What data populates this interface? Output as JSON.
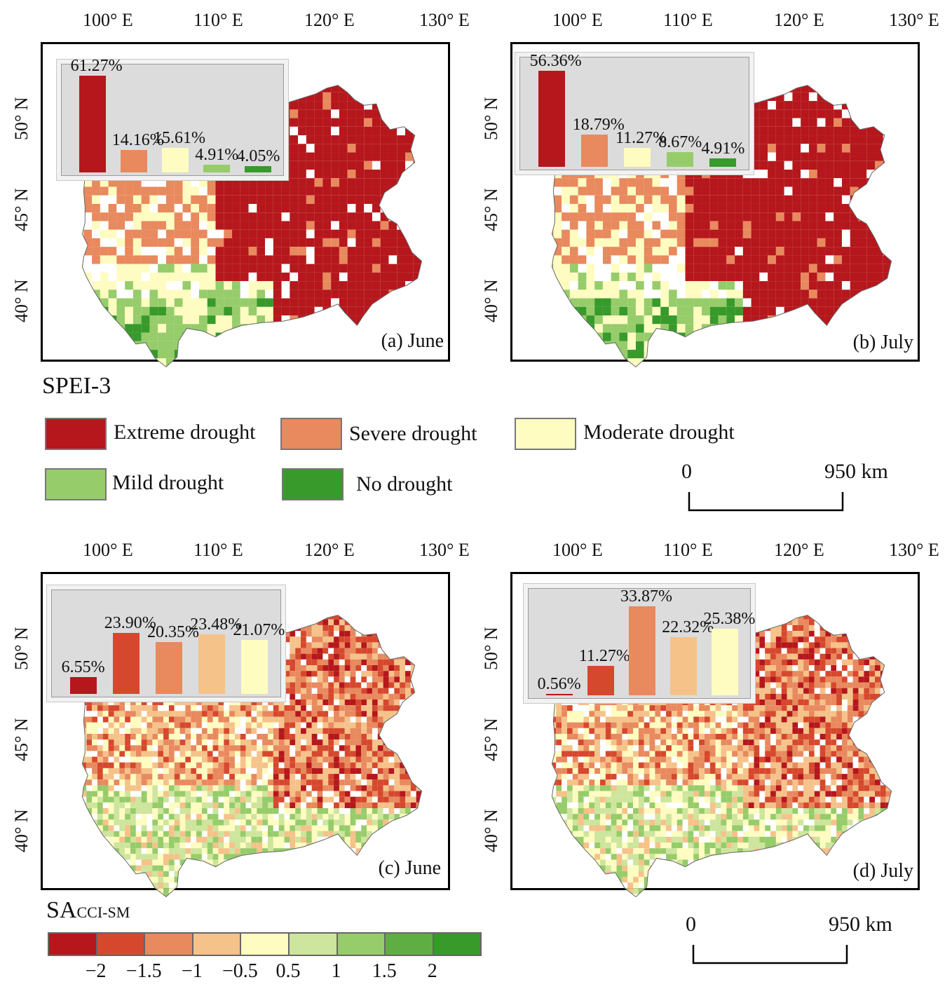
{
  "colors": {
    "extreme": "#b5171c",
    "severe": "#e8895e",
    "moderate": "#fefcc0",
    "mild": "#96cc6a",
    "none": "#379a2b",
    "cbar": [
      "#b5171c",
      "#d6482d",
      "#e8895e",
      "#f5c28a",
      "#fefcc0",
      "#cde59c",
      "#96cc6a",
      "#5fae44",
      "#379a2b"
    ]
  },
  "axes": {
    "lon_labels": [
      "100° E",
      "110° E",
      "120° E",
      "130° E"
    ],
    "lat_labels": [
      "50° N",
      "45° N",
      "40° N"
    ]
  },
  "panels": [
    {
      "id": "a",
      "label": "(a) June",
      "bars": [
        {
          "value": "61.27%",
          "class": "extreme",
          "frac": 61.27
        },
        {
          "value": "14.16%",
          "class": "severe",
          "frac": 14.16
        },
        {
          "value": "15.61%",
          "class": "moderate",
          "frac": 15.61
        },
        {
          "value": "4.91%",
          "class": "mild",
          "frac": 4.91
        },
        {
          "value": "4.05%",
          "class": "none",
          "frac": 4.05
        }
      ]
    },
    {
      "id": "b",
      "label": "(b) July",
      "bars": [
        {
          "value": "56.36%",
          "class": "extreme",
          "frac": 56.36
        },
        {
          "value": "18.79%",
          "class": "severe",
          "frac": 18.79
        },
        {
          "value": "11.27%",
          "class": "moderate",
          "frac": 11.27
        },
        {
          "value": "8.67%",
          "class": "mild",
          "frac": 8.67
        },
        {
          "value": "4.91%",
          "class": "none",
          "frac": 4.91
        }
      ]
    },
    {
      "id": "c",
      "label": "(c) June",
      "bars": [
        {
          "value": "6.55%",
          "class": "c0",
          "frac": 6.55
        },
        {
          "value": "23.90%",
          "class": "c1",
          "frac": 23.9
        },
        {
          "value": "20.35%",
          "class": "c2",
          "frac": 20.35
        },
        {
          "value": "23.48%",
          "class": "c3",
          "frac": 23.48
        },
        {
          "value": "21.07%",
          "class": "c4",
          "frac": 21.07
        }
      ]
    },
    {
      "id": "d",
      "label": "(d) July",
      "bars": [
        {
          "value": "0.56%",
          "class": "c0",
          "frac": 0.56
        },
        {
          "value": "11.27%",
          "class": "c1",
          "frac": 11.27
        },
        {
          "value": "33.87%",
          "class": "c2",
          "frac": 33.87
        },
        {
          "value": "22.32%",
          "class": "c3",
          "frac": 22.32
        },
        {
          "value": "25.38%",
          "class": "c4",
          "frac": 25.38
        }
      ]
    }
  ],
  "spei_legend": {
    "title": "SPEI-3",
    "items": [
      {
        "label": "Extreme drought",
        "class": "extreme"
      },
      {
        "label": "Severe drought",
        "class": "severe"
      },
      {
        "label": "Moderate drought",
        "class": "moderate"
      },
      {
        "label": "Mild drought",
        "class": "mild"
      },
      {
        "label": "No drought",
        "class": "none"
      }
    ]
  },
  "scale": {
    "zero": "0",
    "distance": "950 km"
  },
  "sa_legend": {
    "title_main": "SA",
    "title_sub": "CCI-SM",
    "ticks": [
      "−2",
      "−1.5",
      "−1",
      "−0.5",
      "0.5",
      "1",
      "1.5",
      "2"
    ]
  }
}
